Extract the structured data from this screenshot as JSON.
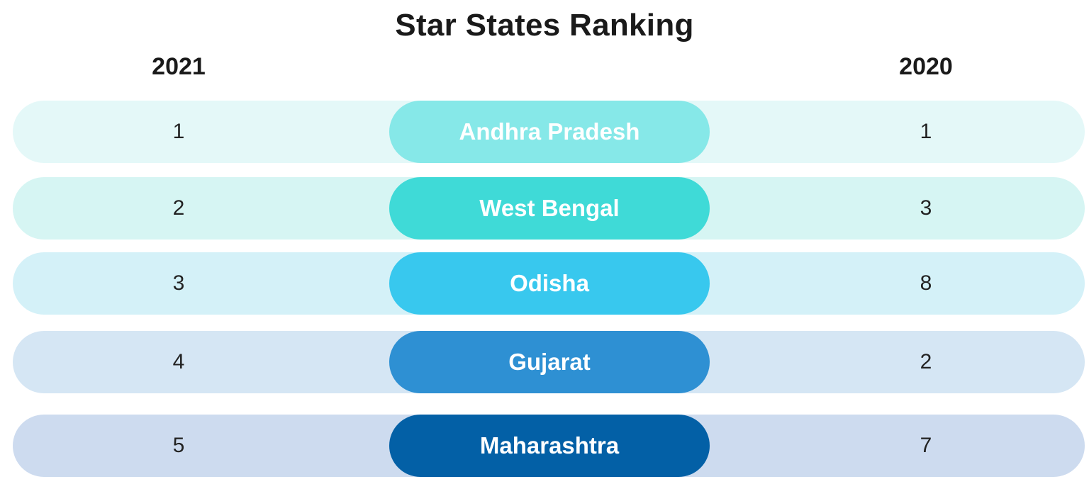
{
  "chart_data": {
    "type": "table",
    "title": "Star States Ranking",
    "columns": [
      "2021",
      "2020"
    ],
    "rows": [
      {
        "state": "Andhra Pradesh",
        "rank_2021": "1",
        "rank_2020": "1",
        "row_color": "#e4f8f8",
        "pill_color": "#86e8e8"
      },
      {
        "state": "West Bengal",
        "rank_2021": "2",
        "rank_2020": "3",
        "row_color": "#d6f5f3",
        "pill_color": "#3fdad7"
      },
      {
        "state": "Odisha",
        "rank_2021": "3",
        "rank_2020": "8",
        "row_color": "#d4f1f8",
        "pill_color": "#38c8ee"
      },
      {
        "state": "Gujarat",
        "rank_2021": "4",
        "rank_2020": "2",
        "row_color": "#d5e6f4",
        "pill_color": "#2e90d3"
      },
      {
        "state": "Maharashtra",
        "rank_2021": "5",
        "rank_2020": "7",
        "row_color": "#cddbef",
        "pill_color": "#0360a6"
      }
    ]
  }
}
